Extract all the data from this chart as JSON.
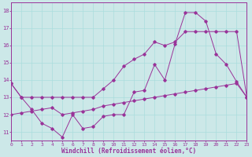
{
  "xlabel": "Windchill (Refroidissement éolien,°C)",
  "xlim": [
    0,
    23
  ],
  "ylim": [
    10.5,
    18.5
  ],
  "yticks": [
    11,
    12,
    13,
    14,
    15,
    16,
    17,
    18
  ],
  "xticks": [
    0,
    1,
    2,
    3,
    4,
    5,
    6,
    7,
    8,
    9,
    10,
    11,
    12,
    13,
    14,
    15,
    16,
    17,
    18,
    19,
    20,
    21,
    22,
    23
  ],
  "bg_color": "#cce8e8",
  "line_color": "#993399",
  "grid_color": "#aadddd",
  "line1_y": [
    13.8,
    13.0,
    13.0,
    13.0,
    13.0,
    13.0,
    13.0,
    13.0,
    13.0,
    13.5,
    14.0,
    14.8,
    15.2,
    15.5,
    16.2,
    16.0,
    16.2,
    16.8,
    16.8,
    16.8,
    16.8,
    16.8,
    16.8,
    13.0
  ],
  "line2_y": [
    13.8,
    13.0,
    12.3,
    11.5,
    11.2,
    10.7,
    12.0,
    11.2,
    11.3,
    11.9,
    12.0,
    12.0,
    13.3,
    13.4,
    14.9,
    14.0,
    16.1,
    17.9,
    17.9,
    17.4,
    15.5,
    14.9,
    13.9,
    13.0
  ],
  "line3_y": [
    12.0,
    12.1,
    12.2,
    12.3,
    12.4,
    12.0,
    12.1,
    12.2,
    12.3,
    12.5,
    12.6,
    12.7,
    12.8,
    12.9,
    13.0,
    13.1,
    13.2,
    13.3,
    13.4,
    13.5,
    13.6,
    13.7,
    13.8,
    13.0
  ]
}
